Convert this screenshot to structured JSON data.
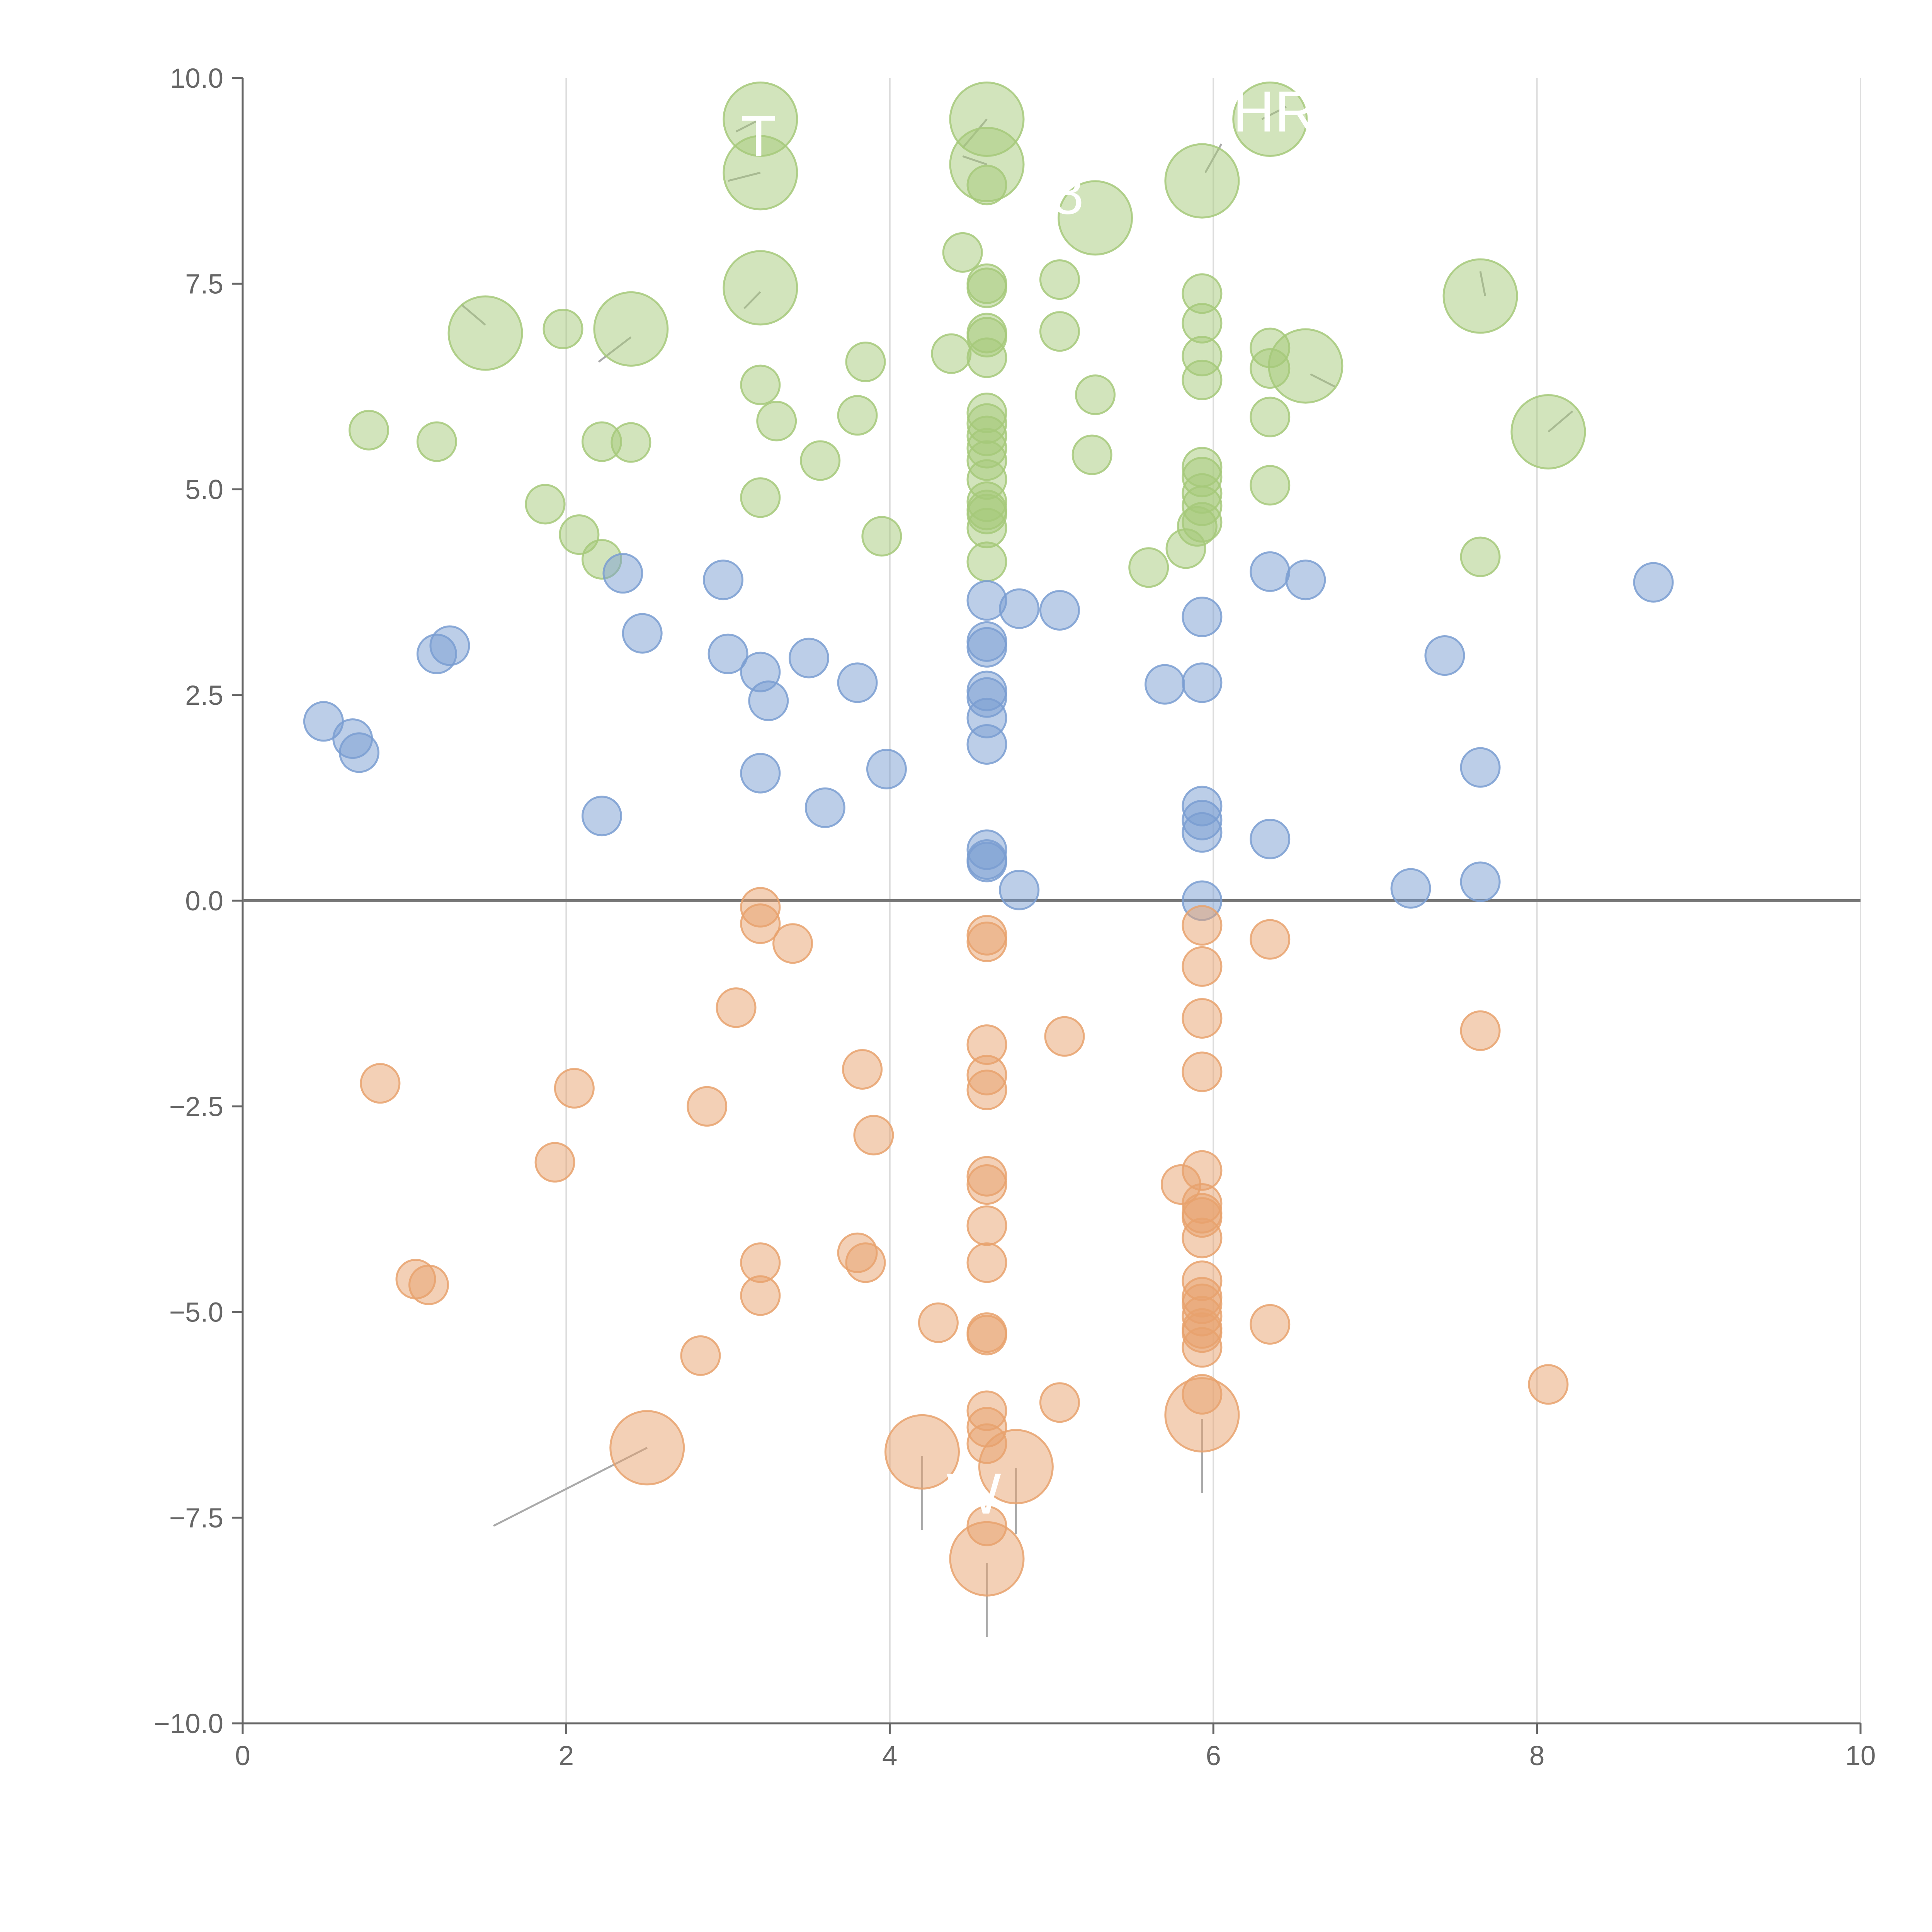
{
  "chart_data": {
    "type": "scatter",
    "title": "",
    "xlabel": "",
    "ylabel": "",
    "xlim": [
      0,
      10
    ],
    "ylim": [
      -10,
      10
    ],
    "x_ticks": [
      "0",
      "2",
      "4",
      "6",
      "8",
      "10"
    ],
    "y_ticks": [
      "10.0",
      "7.5",
      "5.0",
      "2.5",
      "0.0",
      "−2.5",
      "−5.0",
      "−7.5",
      "−10.0"
    ],
    "grid": "vertical",
    "reference_line_y": 0,
    "colors": {
      "green": "#a6c97a",
      "blue": "#7a9ed1",
      "orange": "#e8a26d",
      "axis": "#666666",
      "grid": "#dddddd",
      "zero_line": "#777777"
    },
    "series": [
      {
        "name": "green",
        "color": "#a6c97a",
        "points": [
          [
            3.2,
            9.5,
            2
          ],
          [
            4.6,
            9.5,
            2
          ],
          [
            6.35,
            9.5,
            2
          ],
          [
            3.2,
            8.85,
            2
          ],
          [
            4.6,
            8.95,
            2
          ],
          [
            5.93,
            8.75,
            2
          ],
          [
            5.27,
            8.3,
            2
          ],
          [
            3.2,
            7.45,
            2
          ],
          [
            7.65,
            7.35,
            2
          ],
          [
            1.5,
            6.9,
            2
          ],
          [
            2.4,
            6.95,
            2
          ],
          [
            6.57,
            6.5,
            2
          ],
          [
            8.07,
            5.7,
            2
          ],
          [
            4.6,
            8.7,
            1
          ],
          [
            4.45,
            7.88,
            1
          ],
          [
            4.6,
            7.5,
            1
          ],
          [
            4.6,
            7.45,
            1
          ],
          [
            5.05,
            7.55,
            1
          ],
          [
            5.93,
            7.38,
            1
          ],
          [
            1.98,
            6.95,
            1
          ],
          [
            4.6,
            6.9,
            1
          ],
          [
            4.6,
            6.85,
            1
          ],
          [
            5.05,
            6.92,
            1
          ],
          [
            5.93,
            7.02,
            1
          ],
          [
            3.85,
            6.55,
            1
          ],
          [
            4.38,
            6.65,
            1
          ],
          [
            4.6,
            6.6,
            1
          ],
          [
            5.93,
            6.62,
            1
          ],
          [
            6.35,
            6.72,
            1
          ],
          [
            6.35,
            6.47,
            1
          ],
          [
            3.2,
            6.27,
            1
          ],
          [
            5.27,
            6.15,
            1
          ],
          [
            5.93,
            6.33,
            1
          ],
          [
            3.3,
            5.83,
            1
          ],
          [
            3.8,
            5.9,
            1
          ],
          [
            4.6,
            5.93,
            1
          ],
          [
            4.6,
            5.8,
            1
          ],
          [
            6.35,
            5.88,
            1
          ],
          [
            0.78,
            5.72,
            1
          ],
          [
            1.2,
            5.58,
            1
          ],
          [
            2.22,
            5.58,
            1
          ],
          [
            2.4,
            5.57,
            1
          ],
          [
            4.6,
            5.65,
            1
          ],
          [
            4.6,
            5.5,
            1
          ],
          [
            4.6,
            5.35,
            1
          ],
          [
            3.57,
            5.35,
            1
          ],
          [
            5.25,
            5.42,
            1
          ],
          [
            5.93,
            5.27,
            1
          ],
          [
            5.93,
            5.15,
            1
          ],
          [
            4.6,
            5.12,
            1
          ],
          [
            6.35,
            5.05,
            1
          ],
          [
            1.87,
            4.82,
            1
          ],
          [
            3.2,
            4.9,
            1
          ],
          [
            4.6,
            4.85,
            1
          ],
          [
            4.6,
            4.75,
            1
          ],
          [
            4.6,
            4.7,
            1
          ],
          [
            5.93,
            4.95,
            1
          ],
          [
            5.93,
            4.8,
            1
          ],
          [
            2.08,
            4.45,
            1
          ],
          [
            3.95,
            4.43,
            1
          ],
          [
            4.6,
            4.53,
            1
          ],
          [
            5.93,
            4.6,
            1
          ],
          [
            5.9,
            4.55,
            1
          ],
          [
            2.22,
            4.15,
            1
          ],
          [
            4.6,
            4.12,
            1
          ],
          [
            5.6,
            4.05,
            1
          ],
          [
            5.83,
            4.28,
            1
          ],
          [
            7.65,
            4.18,
            1
          ]
        ]
      },
      {
        "name": "blue",
        "color": "#7a9ed1",
        "points": [
          [
            2.35,
            3.98,
            1
          ],
          [
            2.97,
            3.9,
            1
          ],
          [
            6.35,
            4.0,
            1
          ],
          [
            6.57,
            3.9,
            1
          ],
          [
            8.72,
            3.87,
            1
          ],
          [
            4.6,
            3.65,
            1
          ],
          [
            4.8,
            3.55,
            1
          ],
          [
            5.05,
            3.53,
            1
          ],
          [
            5.93,
            3.45,
            1
          ],
          [
            2.47,
            3.25,
            1
          ],
          [
            1.28,
            3.1,
            1
          ],
          [
            1.2,
            3.0,
            1
          ],
          [
            4.6,
            3.15,
            1
          ],
          [
            4.6,
            3.08,
            1
          ],
          [
            3.0,
            3.0,
            1
          ],
          [
            3.5,
            2.95,
            1
          ],
          [
            7.43,
            2.98,
            1
          ],
          [
            3.2,
            2.78,
            1
          ],
          [
            3.8,
            2.65,
            1
          ],
          [
            5.7,
            2.63,
            1
          ],
          [
            5.93,
            2.65,
            1
          ],
          [
            4.6,
            2.55,
            1
          ],
          [
            4.6,
            2.47,
            1
          ],
          [
            3.25,
            2.43,
            1
          ],
          [
            4.6,
            2.22,
            1
          ],
          [
            0.5,
            2.18,
            1
          ],
          [
            0.68,
            1.97,
            1
          ],
          [
            0.72,
            1.8,
            1
          ],
          [
            4.6,
            1.9,
            1
          ],
          [
            3.2,
            1.55,
            1
          ],
          [
            3.98,
            1.6,
            1
          ],
          [
            7.65,
            1.62,
            1
          ],
          [
            3.6,
            1.13,
            1
          ],
          [
            5.93,
            1.15,
            1
          ],
          [
            2.22,
            1.03,
            1
          ],
          [
            5.93,
            0.98,
            1
          ],
          [
            5.93,
            0.83,
            1
          ],
          [
            6.35,
            0.75,
            1
          ],
          [
            4.6,
            0.62,
            1
          ],
          [
            4.6,
            0.5,
            1
          ],
          [
            4.6,
            0.47,
            1
          ],
          [
            4.8,
            0.13,
            1
          ],
          [
            7.22,
            0.15,
            1
          ],
          [
            7.65,
            0.23,
            1
          ],
          [
            5.93,
            0.0,
            1
          ]
        ]
      },
      {
        "name": "orange",
        "color": "#e8a26d",
        "points": [
          [
            3.2,
            -0.08,
            1
          ],
          [
            3.2,
            -0.28,
            1
          ],
          [
            3.4,
            -0.52,
            1
          ],
          [
            4.6,
            -0.42,
            1
          ],
          [
            4.6,
            -0.5,
            1
          ],
          [
            5.93,
            -0.3,
            1
          ],
          [
            6.35,
            -0.47,
            1
          ],
          [
            5.93,
            -0.8,
            1
          ],
          [
            3.05,
            -1.3,
            1
          ],
          [
            5.93,
            -1.43,
            1
          ],
          [
            5.08,
            -1.65,
            1
          ],
          [
            7.65,
            -1.58,
            1
          ],
          [
            4.6,
            -1.75,
            1
          ],
          [
            3.83,
            -2.05,
            1
          ],
          [
            4.6,
            -2.12,
            1
          ],
          [
            5.93,
            -2.08,
            1
          ],
          [
            0.85,
            -2.22,
            1
          ],
          [
            2.05,
            -2.28,
            1
          ],
          [
            4.6,
            -2.3,
            1
          ],
          [
            2.87,
            -2.5,
            1
          ],
          [
            3.9,
            -2.85,
            1
          ],
          [
            1.93,
            -3.18,
            1
          ],
          [
            4.6,
            -3.35,
            1
          ],
          [
            4.6,
            -3.45,
            1
          ],
          [
            5.93,
            -3.28,
            1
          ],
          [
            5.8,
            -3.45,
            1
          ],
          [
            5.93,
            -3.68,
            1
          ],
          [
            5.93,
            -3.8,
            1
          ],
          [
            5.93,
            -3.85,
            1
          ],
          [
            4.6,
            -3.95,
            1
          ],
          [
            5.93,
            -4.1,
            1
          ],
          [
            3.2,
            -4.4,
            1
          ],
          [
            3.8,
            -4.28,
            1
          ],
          [
            3.85,
            -4.4,
            1
          ],
          [
            4.6,
            -4.4,
            1
          ],
          [
            1.07,
            -4.6,
            1
          ],
          [
            1.15,
            -4.67,
            1
          ],
          [
            5.93,
            -4.62,
            1
          ],
          [
            3.2,
            -4.8,
            1
          ],
          [
            5.93,
            -4.82,
            1
          ],
          [
            5.93,
            -4.9,
            1
          ],
          [
            5.93,
            -5.05,
            1
          ],
          [
            4.3,
            -5.13,
            1
          ],
          [
            4.6,
            -5.25,
            1
          ],
          [
            4.6,
            -5.28,
            1
          ],
          [
            5.93,
            -5.2,
            1
          ],
          [
            5.93,
            -5.25,
            1
          ],
          [
            6.35,
            -5.15,
            1
          ],
          [
            5.93,
            -5.43,
            1
          ],
          [
            2.83,
            -5.53,
            1
          ],
          [
            8.07,
            -5.88,
            1
          ],
          [
            5.93,
            -6.0,
            1
          ],
          [
            5.05,
            -6.1,
            1
          ],
          [
            4.6,
            -6.2,
            1
          ],
          [
            4.6,
            -6.4,
            1
          ],
          [
            4.6,
            -6.6,
            1
          ],
          [
            4.6,
            -7.6,
            1
          ],
          [
            5.93,
            -6.25,
            2
          ],
          [
            2.5,
            -6.65,
            2
          ],
          [
            4.2,
            -6.7,
            2
          ],
          [
            4.78,
            -6.88,
            2
          ],
          [
            4.6,
            -8.0,
            2
          ]
        ]
      }
    ],
    "connectors": [
      [
        1.55,
        -7.6,
        2.5,
        -6.65
      ],
      [
        4.2,
        -7.65,
        4.2,
        -6.75
      ],
      [
        4.78,
        -7.7,
        4.78,
        -6.9
      ],
      [
        5.93,
        -7.2,
        5.93,
        -6.3
      ],
      [
        4.6,
        -8.95,
        4.6,
        -8.05
      ],
      [
        2.2,
        6.55,
        2.4,
        6.85
      ],
      [
        1.5,
        7.0,
        1.35,
        7.25
      ],
      [
        3.0,
        8.75,
        3.2,
        8.85
      ],
      [
        3.05,
        9.35,
        3.2,
        9.5
      ],
      [
        3.1,
        7.2,
        3.2,
        7.4
      ],
      [
        4.45,
        9.15,
        4.6,
        9.5
      ],
      [
        4.6,
        8.95,
        4.45,
        9.05
      ],
      [
        5.95,
        8.85,
        6.05,
        9.2
      ],
      [
        6.3,
        9.5,
        6.45,
        9.65
      ],
      [
        7.68,
        7.35,
        7.65,
        7.65
      ],
      [
        6.6,
        6.4,
        6.75,
        6.25
      ],
      [
        8.07,
        5.7,
        8.22,
        5.95
      ]
    ],
    "annotations": [
      {
        "text": "T",
        "x": 3.08,
        "y": 9.05
      },
      {
        "text": "HR",
        "x": 6.12,
        "y": 9.35
      },
      {
        "text": "8",
        "x": 5.0,
        "y": 8.35
      },
      {
        "text": "W",
        "x": 4.35,
        "y": -7.45
      }
    ]
  }
}
